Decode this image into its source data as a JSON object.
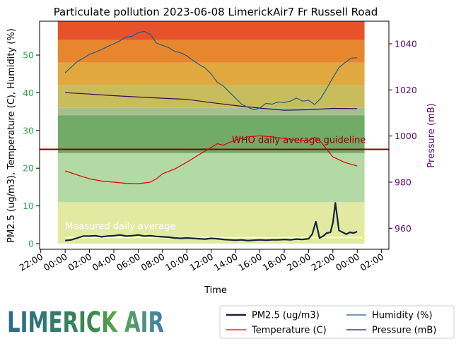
{
  "chart_data": {
    "type": "line",
    "title": "Particulate pollution 2023-06-08 LimerickAir7 Fr Russell Road",
    "xlabel": "Time",
    "ylabel_left": "PM2.5 (ug/m3), Temperature (C), Humidity (%)",
    "ylabel_right": "Pressure (mB)",
    "x_range_hours": [
      -2.1,
      26.6
    ],
    "ylim_left": [
      -1.5,
      59
    ],
    "ylim_right": [
      950.9,
      1049.8
    ],
    "x_tick_labels": [
      "22:00",
      "00:00",
      "02:00",
      "04:00",
      "06:00",
      "08:00",
      "10:00",
      "12:00",
      "14:00",
      "16:00",
      "18:00",
      "20:00",
      "22:00",
      "00:00",
      "02:00"
    ],
    "x_tick_hours": [
      -2,
      0,
      2,
      4,
      6,
      8,
      10,
      12,
      14,
      16,
      18,
      20,
      22,
      24,
      26
    ],
    "y_ticks_left": [
      0,
      10,
      20,
      30,
      40,
      50
    ],
    "y_ticks_right": [
      960,
      980,
      1000,
      1020,
      1040
    ],
    "colors": {
      "pm25": "#14213d",
      "temperature": "#e00000",
      "humidity": "#1a5e8a",
      "pressure": "#3d0a4d",
      "who_line": "#8b0000",
      "left_axis": "#2aa84a",
      "right_axis": "#5c0a73"
    },
    "bands": [
      {
        "from": 0,
        "to": 11,
        "color": "#e1eaa0"
      },
      {
        "from": 11,
        "to": 24,
        "color": "#b3d9a5"
      },
      {
        "from": 24,
        "to": 34,
        "color": "#72ab68"
      },
      {
        "from": 34,
        "to": 36,
        "color": "#a6bf8e"
      },
      {
        "from": 36,
        "to": 42,
        "color": "#c8bd5c"
      },
      {
        "from": 42,
        "to": 48,
        "color": "#e0a83e"
      },
      {
        "from": 48,
        "to": 54,
        "color": "#e8862e"
      },
      {
        "from": 54,
        "to": 59,
        "color": "#e8522b"
      }
    ],
    "who_guideline": {
      "value": 25,
      "label": "WHO daily average guideline"
    },
    "measured_average": {
      "value": 1.6,
      "label": "Measured daily average"
    },
    "series": [
      {
        "name": "PM2.5 (ug/m3)",
        "key": "pm25",
        "x": [
          0,
          0.5,
          1,
          1.5,
          2,
          2.5,
          3,
          3.5,
          4,
          4.5,
          5,
          5.5,
          6,
          6.5,
          7,
          7.5,
          8,
          8.5,
          9,
          9.5,
          10,
          10.5,
          11,
          11.5,
          12,
          12.5,
          13,
          13.5,
          14,
          14.5,
          15,
          15.5,
          16,
          16.5,
          17,
          17.5,
          18,
          18.5,
          19,
          19.5,
          20,
          20.3,
          20.6,
          20.9,
          21.2,
          21.5,
          21.8,
          22,
          22.2,
          22.5,
          22.8,
          23.1,
          23.4,
          23.7,
          24
        ],
        "y": [
          0.8,
          1.0,
          1.5,
          2.0,
          2.0,
          2.1,
          1.8,
          2.0,
          2.1,
          2.3,
          2.0,
          2.1,
          2.3,
          2.0,
          2.1,
          1.9,
          1.8,
          1.7,
          1.5,
          1.4,
          1.5,
          1.4,
          1.3,
          1.2,
          1.4,
          1.3,
          1.1,
          1.0,
          0.9,
          1.0,
          0.8,
          0.9,
          1.0,
          0.9,
          1.0,
          1.0,
          1.1,
          1.0,
          1.2,
          1.1,
          1.3,
          2.5,
          5.8,
          1.5,
          2.0,
          2.8,
          3.0,
          5.5,
          10.8,
          3.5,
          3.0,
          2.5,
          3.0,
          2.8,
          3.2
        ]
      },
      {
        "name": "Temperature (C)",
        "key": "temperature",
        "x": [
          0,
          1,
          2,
          3,
          4,
          5,
          6,
          7,
          7.5,
          8,
          9,
          10,
          11,
          12,
          12.5,
          13,
          14,
          15,
          16,
          17,
          18,
          19,
          20,
          20.5,
          21,
          21.5,
          22,
          23,
          24
        ],
        "y": [
          19.3,
          18.2,
          17.2,
          16.6,
          16.3,
          16.0,
          15.9,
          16.3,
          17.2,
          18.5,
          19.8,
          21.6,
          23.6,
          25.5,
          26.5,
          26.1,
          27.5,
          28.3,
          28.6,
          28.3,
          27.9,
          27.5,
          27.2,
          28.2,
          27.0,
          25.0,
          23.0,
          21.5,
          20.6
        ]
      },
      {
        "name": "Humidity (%)",
        "key": "humidity",
        "x": [
          0,
          0.5,
          1,
          1.5,
          2,
          2.5,
          3,
          3.5,
          4,
          4.5,
          5,
          5.5,
          6,
          6.5,
          7,
          7.5,
          8,
          8.5,
          9,
          9.5,
          10,
          10.5,
          11,
          11.5,
          12,
          12.5,
          13,
          13.5,
          14,
          14.5,
          15,
          15.5,
          16,
          16.5,
          17,
          17.5,
          18,
          18.5,
          19,
          19.5,
          20,
          20.5,
          21,
          21.5,
          22,
          22.5,
          23,
          23.5,
          24
        ],
        "y": [
          45.3,
          46.8,
          48.3,
          49.2,
          50.2,
          50.8,
          51.5,
          52.3,
          53.0,
          53.8,
          54.8,
          55.0,
          56.0,
          56.3,
          55.5,
          53.2,
          52.6,
          52.0,
          51.0,
          50.6,
          49.8,
          48.6,
          47.5,
          46.6,
          45.0,
          42.8,
          41.8,
          40.2,
          38.6,
          37.0,
          36.2,
          35.5,
          36.0,
          37.2,
          37.0,
          37.6,
          37.4,
          37.8,
          38.6,
          37.8,
          38.0,
          36.9,
          38.5,
          41.2,
          44.0,
          46.7,
          48.0,
          49.2,
          49.3
        ]
      },
      {
        "name": "Pressure (mB)",
        "key": "pressure",
        "x": [
          0,
          2,
          4,
          6,
          8,
          10,
          12,
          14,
          16,
          18,
          20,
          22,
          24
        ],
        "y": [
          1018.8,
          1018.2,
          1017.5,
          1016.9,
          1016.4,
          1015.9,
          1014.5,
          1013.2,
          1012.1,
          1011.2,
          1011.4,
          1012.0,
          1011.9
        ]
      }
    ],
    "legend": {
      "placement": "bottom-right",
      "entries": [
        {
          "label": "PM2.5 (ug/m3)",
          "key": "pm25"
        },
        {
          "label": "Humidity (%)",
          "key": "humidity"
        },
        {
          "label": "Temperature (C)",
          "key": "temperature"
        },
        {
          "label": "Pressure (mB)",
          "key": "pressure"
        }
      ]
    }
  },
  "branding": {
    "logo_text": "LIMERICK AIR",
    "logo_color_left": "#2c6a8f",
    "logo_color_right": "#3a8a4a"
  }
}
